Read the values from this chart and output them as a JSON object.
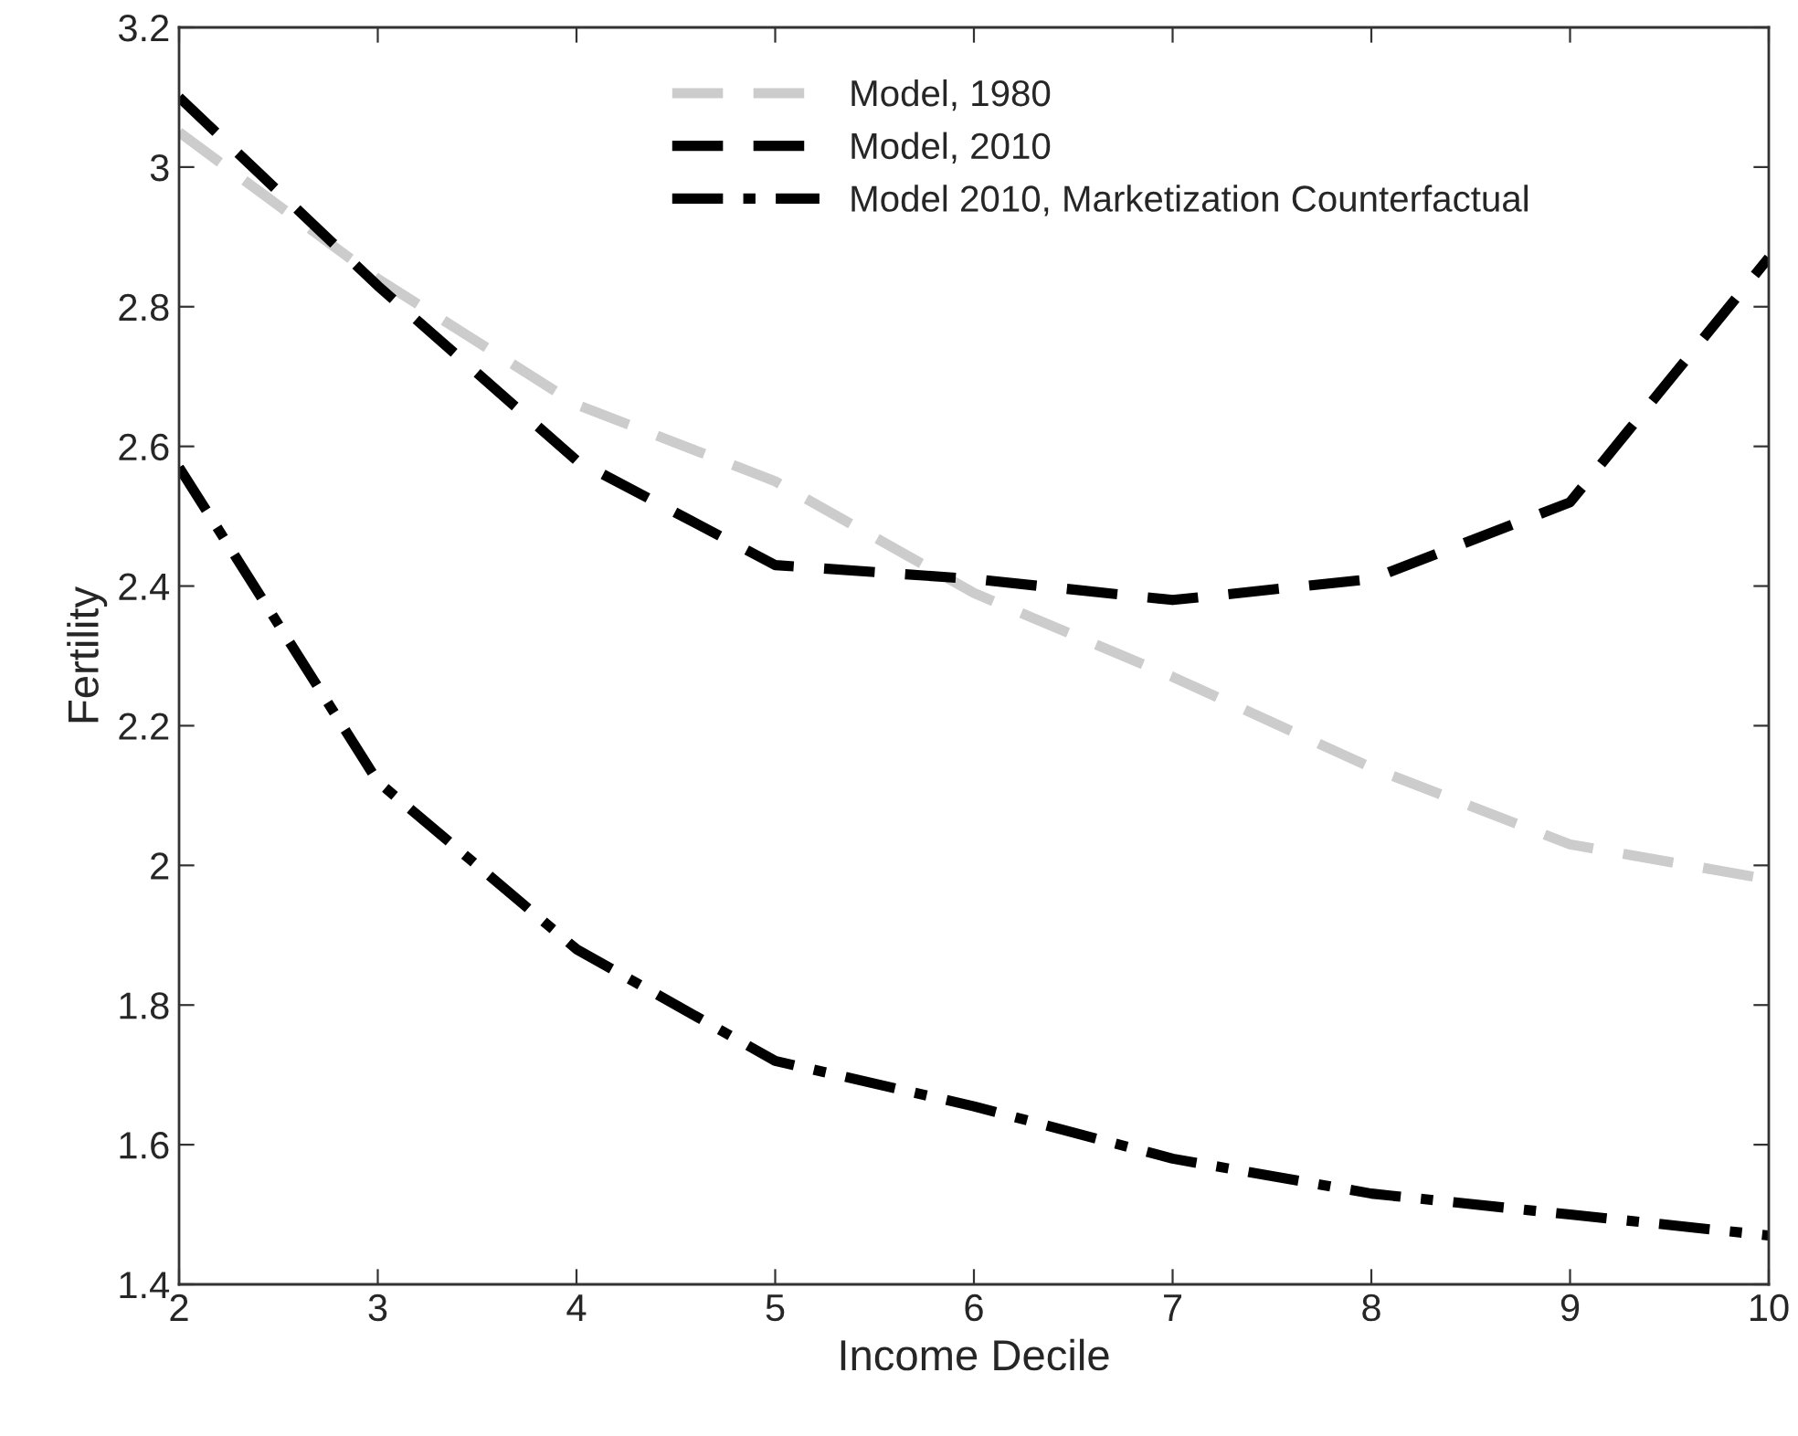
{
  "chart_data": {
    "type": "line",
    "xlabel": "Income Decile",
    "ylabel": "Fertility",
    "x": [
      2,
      3,
      4,
      5,
      6,
      7,
      8,
      9,
      10
    ],
    "series": [
      {
        "name": "Model, 1980",
        "color": "#cccccc",
        "line_style": "dashed",
        "values": [
          3.05,
          2.84,
          2.66,
          2.55,
          2.39,
          2.27,
          2.14,
          2.03,
          1.98
        ]
      },
      {
        "name": "Model, 2010",
        "color": "#000000",
        "line_style": "dashed",
        "values": [
          3.1,
          2.83,
          2.58,
          2.43,
          2.41,
          2.38,
          2.41,
          2.52,
          2.87
        ]
      },
      {
        "name": "Model 2010, Marketization Counterfactual",
        "color": "#000000",
        "line_style": "dashdot",
        "values": [
          2.57,
          2.12,
          1.88,
          1.72,
          1.655,
          1.58,
          1.53,
          1.5,
          1.47
        ]
      }
    ],
    "xlim": [
      2,
      10
    ],
    "xticks": [
      2,
      3,
      4,
      5,
      6,
      7,
      8,
      9,
      10
    ],
    "ylim": [
      1.4,
      3.2
    ],
    "yticks": [
      1.4,
      1.6,
      1.8,
      2,
      2.2,
      2.4,
      2.6,
      2.8,
      3,
      3.2
    ],
    "grid": false,
    "legend": "top",
    "marker": "none"
  }
}
